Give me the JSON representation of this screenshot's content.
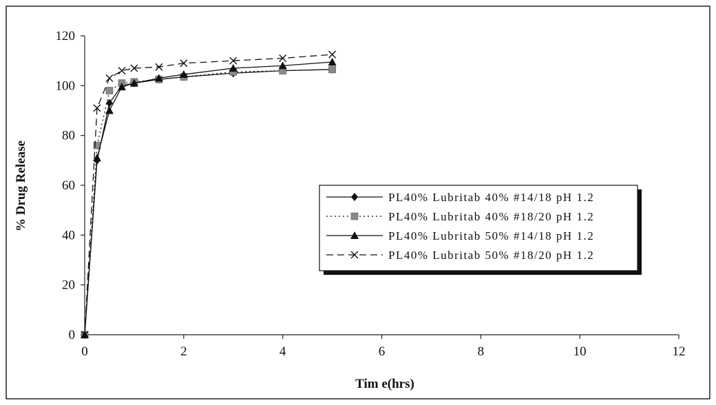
{
  "chart_data": {
    "type": "line",
    "title": "",
    "xlabel": "Tim e(hrs)",
    "ylabel": "% Drug Release",
    "xlim": [
      0,
      12
    ],
    "ylim": [
      0,
      120
    ],
    "xticks": [
      0,
      2,
      4,
      6,
      8,
      10,
      12
    ],
    "yticks": [
      0,
      20,
      40,
      60,
      80,
      100,
      120
    ],
    "grid": false,
    "legend_position": "center-right",
    "series": [
      {
        "name": "PL40% Lubritab 40% #14/18 pH 1.2",
        "marker": "diamond",
        "marker_color": "#111111",
        "line_style": "solid",
        "x": [
          0,
          0.25,
          0.5,
          0.75,
          1,
          1.5,
          2,
          3,
          4,
          5
        ],
        "y": [
          0,
          70,
          93,
          100,
          101,
          102.5,
          103.5,
          105,
          106,
          106.5
        ]
      },
      {
        "name": "PL40% Lubritab 40% #18/20 pH 1.2",
        "marker": "square",
        "marker_color": "#8a8a8a",
        "line_style": "dotted",
        "x": [
          0,
          0.25,
          0.5,
          0.75,
          1,
          1.5,
          2,
          3,
          4,
          5
        ],
        "y": [
          0,
          76,
          98,
          101,
          101.5,
          102.5,
          103.5,
          105.5,
          106,
          106.5
        ]
      },
      {
        "name": "PL40% Lubritab 50% #14/18 pH 1.2",
        "marker": "triangle",
        "marker_color": "#111111",
        "line_style": "solid",
        "x": [
          0,
          0.25,
          0.5,
          0.75,
          1,
          1.5,
          2,
          3,
          4,
          5
        ],
        "y": [
          0,
          71,
          90,
          99.5,
          101,
          103,
          104.5,
          107,
          108,
          109.5
        ]
      },
      {
        "name": "PL40% Lubritab 50% #18/20 pH 1.2",
        "marker": "x",
        "marker_color": "#111111",
        "line_style": "dashed",
        "x": [
          0,
          0.25,
          0.5,
          0.75,
          1,
          1.5,
          2,
          3,
          4,
          5
        ],
        "y": [
          0,
          91,
          103,
          106,
          107,
          107.5,
          109,
          110,
          111,
          112.5
        ]
      }
    ]
  }
}
